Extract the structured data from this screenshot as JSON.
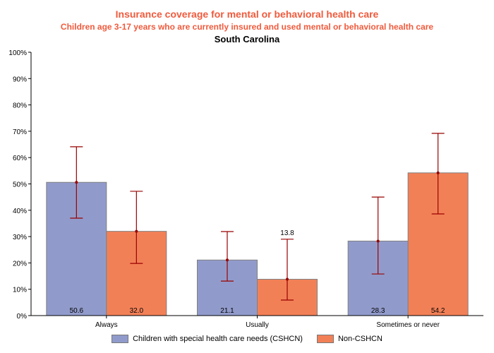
{
  "chart_data": {
    "type": "bar",
    "title": "Insurance coverage for mental or behavioral health care",
    "subtitle": "Children age 3-17 years who are currently insured and used mental or behavioral health care",
    "subtitle2": "South Carolina",
    "xlabel": "",
    "ylabel": "",
    "ylim": [
      0,
      100
    ],
    "yticks": [
      "0%",
      "10%",
      "20%",
      "30%",
      "40%",
      "50%",
      "60%",
      "70%",
      "80%",
      "90%",
      "100%"
    ],
    "categories": [
      "Always",
      "Usually",
      "Sometimes or never"
    ],
    "series": [
      {
        "name": "Children with special health care needs (CSHCN)",
        "color": "#919bcb",
        "values": [
          50.6,
          21.1,
          28.3
        ],
        "labels": [
          "50.6",
          "21.1",
          "28.3"
        ],
        "ci_low": [
          37.0,
          13.1,
          15.8
        ],
        "ci_high": [
          64.1,
          31.9,
          45.0
        ]
      },
      {
        "name": "Non-CSHCN",
        "color": "#f28057",
        "values": [
          32.0,
          13.8,
          54.2
        ],
        "labels": [
          "32.0",
          "13.8",
          "54.2"
        ],
        "label_above": [
          false,
          true,
          false
        ],
        "ci_low": [
          19.8,
          5.9,
          38.6
        ],
        "ci_high": [
          47.2,
          29.0,
          69.2
        ]
      }
    ],
    "error_bar_color": "#990000",
    "grid": false,
    "legend_position": "bottom"
  }
}
